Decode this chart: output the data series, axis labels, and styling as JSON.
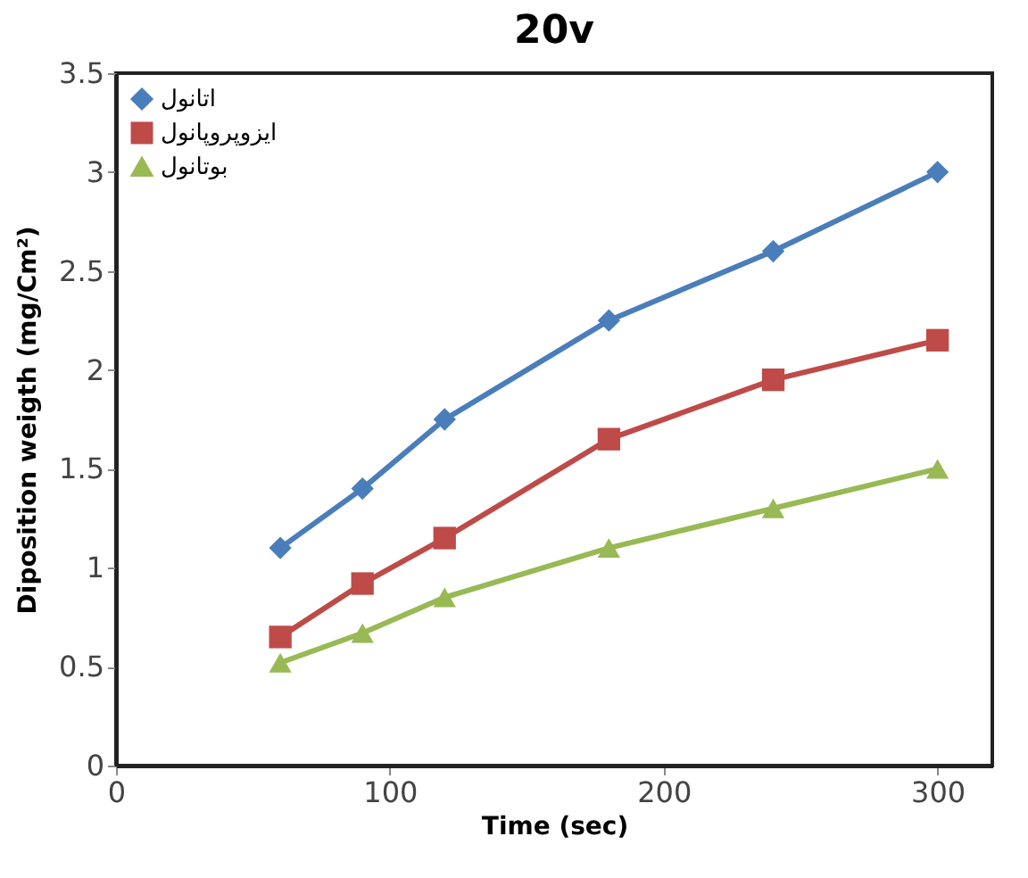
{
  "chart_data": {
    "type": "line",
    "title": "20v",
    "xlabel": "Time (sec)",
    "ylabel": "Diposition weigth (mg/Cm²)",
    "x": [
      60,
      90,
      120,
      180,
      240,
      300
    ],
    "series": [
      {
        "name": "اتانول",
        "color": "#4a7ebb",
        "marker": "diamond",
        "values": [
          1.1,
          1.4,
          1.75,
          2.25,
          2.6,
          3.0
        ]
      },
      {
        "name": "ایزوپروپانول",
        "color": "#be4b48",
        "marker": "square",
        "values": [
          0.65,
          0.92,
          1.15,
          1.65,
          1.95,
          2.15
        ]
      },
      {
        "name": "بوتانول",
        "color": "#98b954",
        "marker": "triangle",
        "values": [
          0.52,
          0.67,
          0.85,
          1.1,
          1.3,
          1.5
        ]
      }
    ],
    "xlim": [
      0,
      320
    ],
    "xticks": [
      0,
      100,
      200,
      300
    ],
    "ylim": [
      0,
      3.5
    ],
    "yticks": [
      0,
      0.5,
      1,
      1.5,
      2,
      2.5,
      3,
      3.5
    ],
    "grid": false,
    "legend": "top left",
    "line_style": "solid"
  }
}
